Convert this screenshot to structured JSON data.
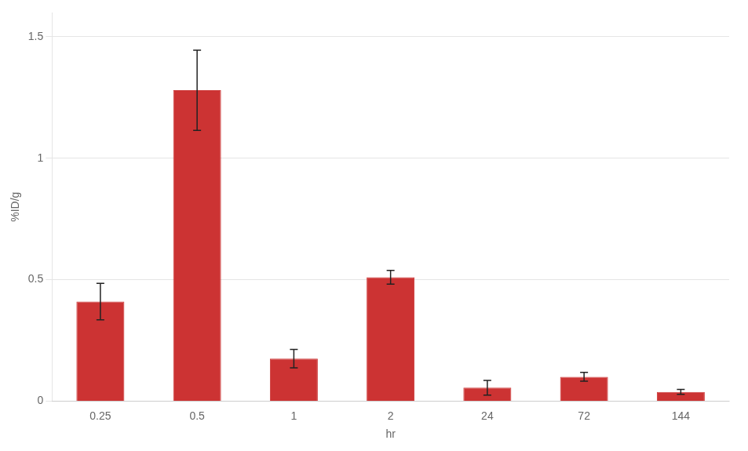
{
  "chart_data": {
    "type": "bar",
    "categories": [
      "0.25",
      "0.5",
      "1",
      "2",
      "24",
      "72",
      "144"
    ],
    "values": [
      0.41,
      1.28,
      0.175,
      0.51,
      0.055,
      0.1,
      0.038
    ],
    "errors": [
      0.075,
      0.165,
      0.038,
      0.028,
      0.03,
      0.018,
      0.01
    ],
    "color": "#cc3333",
    "xlabel": "hr",
    "ylabel": "%ID/g",
    "ylim": [
      0,
      1.6
    ],
    "yticks": [
      0,
      0.5,
      1,
      1.5
    ],
    "grid": true
  }
}
